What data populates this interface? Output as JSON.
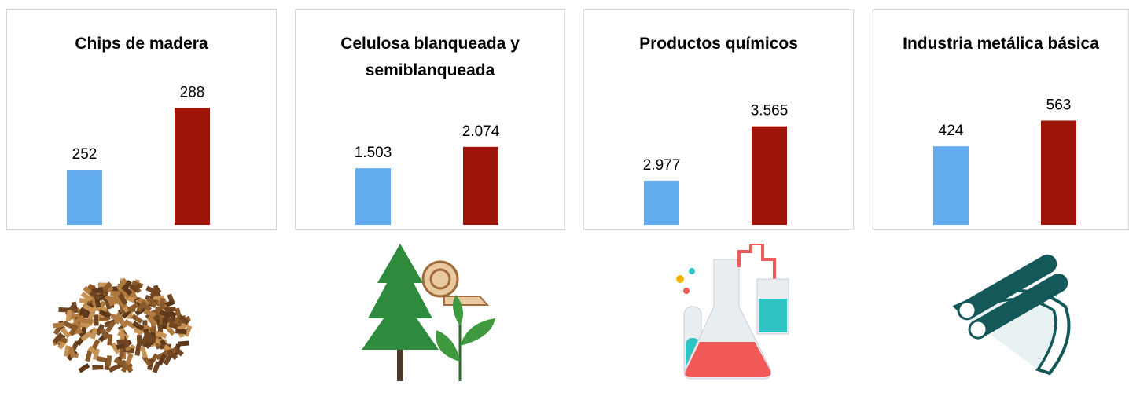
{
  "chart_data": [
    {
      "type": "bar",
      "title": "Chips de madera",
      "categories": [
        null,
        null
      ],
      "values": [
        252,
        288
      ],
      "colors": [
        "#62abee",
        "#a0150a"
      ],
      "ylim": [
        220,
        290
      ]
    },
    {
      "type": "bar",
      "title": "Celulosa blanqueada y semiblanqueada",
      "categories": [
        null,
        null
      ],
      "values": [
        1503,
        2074
      ],
      "value_labels": [
        "1.503",
        "2.074"
      ],
      "colors": [
        "#62abee",
        "#a0150a"
      ],
      "ylim": [
        0,
        3200
      ]
    },
    {
      "type": "bar",
      "title": "Productos químicos",
      "categories": [
        null,
        null
      ],
      "values": [
        2977,
        3565
      ],
      "value_labels": [
        "2.977",
        "3.565"
      ],
      "colors": [
        "#62abee",
        "#a0150a"
      ],
      "ylim": [
        2500,
        3800
      ]
    },
    {
      "type": "bar",
      "title": "Industria metálica básica",
      "categories": [
        null,
        null
      ],
      "values": [
        424,
        563
      ],
      "colors": [
        "#62abee",
        "#a0150a"
      ],
      "ylim": [
        0,
        650
      ]
    }
  ]
}
